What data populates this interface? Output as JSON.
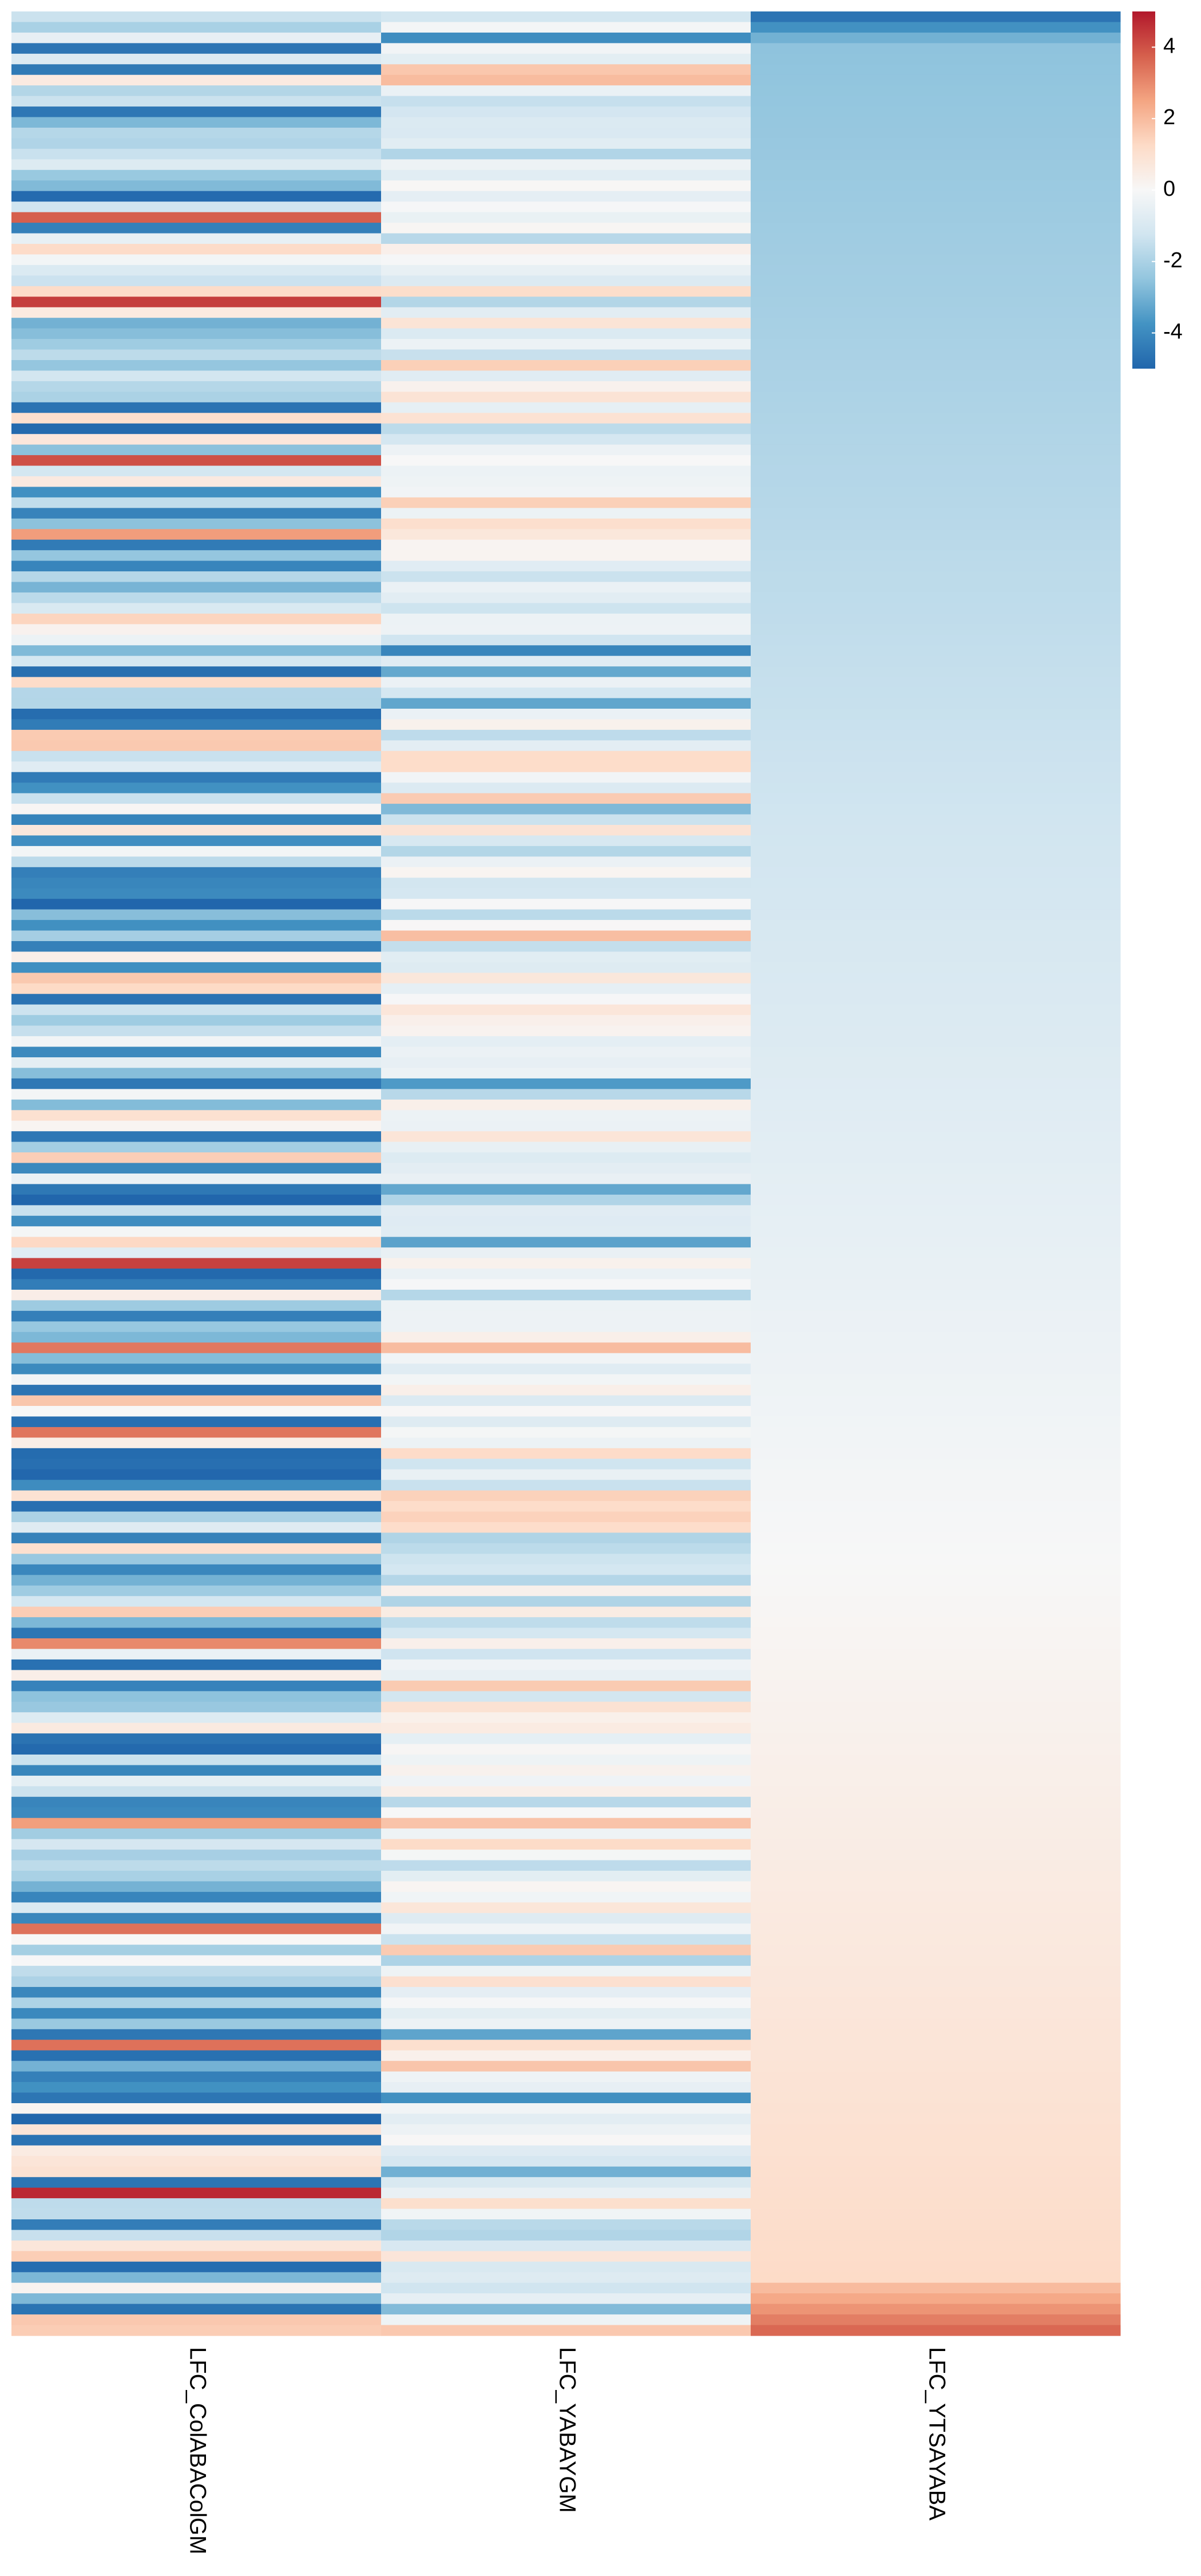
{
  "chart_data": {
    "type": "heatmap",
    "columns": [
      "LFC_ColABAColGM",
      "LFC_YABAYGM",
      "LFC_YTSAYABA"
    ],
    "row_count": 220,
    "sort_by": "LFC_YTSAYABA",
    "color_scale": {
      "min": -5,
      "max": 5,
      "ticks": [
        4,
        2,
        0,
        -2,
        -4
      ],
      "tick_labels": [
        "4",
        "2",
        "0",
        "-2",
        "-4"
      ],
      "colors": [
        "#2166ac",
        "#4393c3",
        "#92c5de",
        "#d1e5f0",
        "#f7f7f7",
        "#fddbc7",
        "#f4a582",
        "#d6604d",
        "#b2182b"
      ]
    },
    "legend_position": "top-right"
  }
}
